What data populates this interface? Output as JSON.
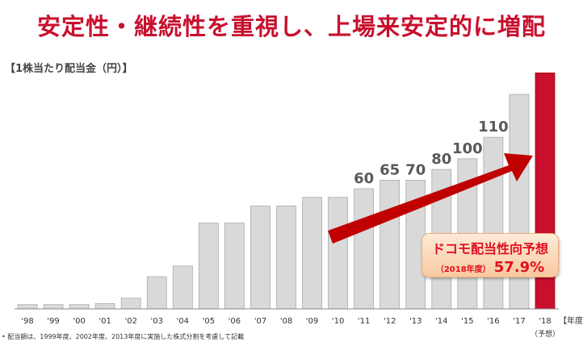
{
  "header": {
    "title": "安定性・継続性を重視し、上場来安定的に増配"
  },
  "chart_data": {
    "type": "bar",
    "unit_label": "【1株当たり配当金（円）】",
    "categories": [
      "'98",
      "'99",
      "'00",
      "'01",
      "'02",
      "'03",
      "'04",
      "'05",
      "'06",
      "'07",
      "'08",
      "'09",
      "'10",
      "'11",
      "'12",
      "'13",
      "'14",
      "'15",
      "'16",
      "'17",
      "'18"
    ],
    "values": [
      2,
      2,
      2,
      2.5,
      5,
      15,
      20,
      40,
      40,
      48,
      48,
      52,
      52,
      56,
      60,
      60,
      65,
      70,
      80,
      100,
      110
    ],
    "data_labels": {
      "13": "60",
      "14": "65",
      "15": "70",
      "16": "80",
      "17": "100",
      "18": "110"
    },
    "x_unit": "【年度】",
    "forecast_label": "（予想）",
    "ylim": [
      0,
      110
    ],
    "grid": false,
    "colors": {
      "bar": "#d9d9d9",
      "forecast_bar": "#c8102e",
      "arrow": "#c00000",
      "label": "#595959"
    }
  },
  "callout": {
    "title": "ドコモ配当性向予想",
    "sub": "（2018年度）",
    "value": "57.9%"
  },
  "footnote": "• 配当額は、1999年度、2002年度、2013年度に実施した株式分割を考慮して記載"
}
